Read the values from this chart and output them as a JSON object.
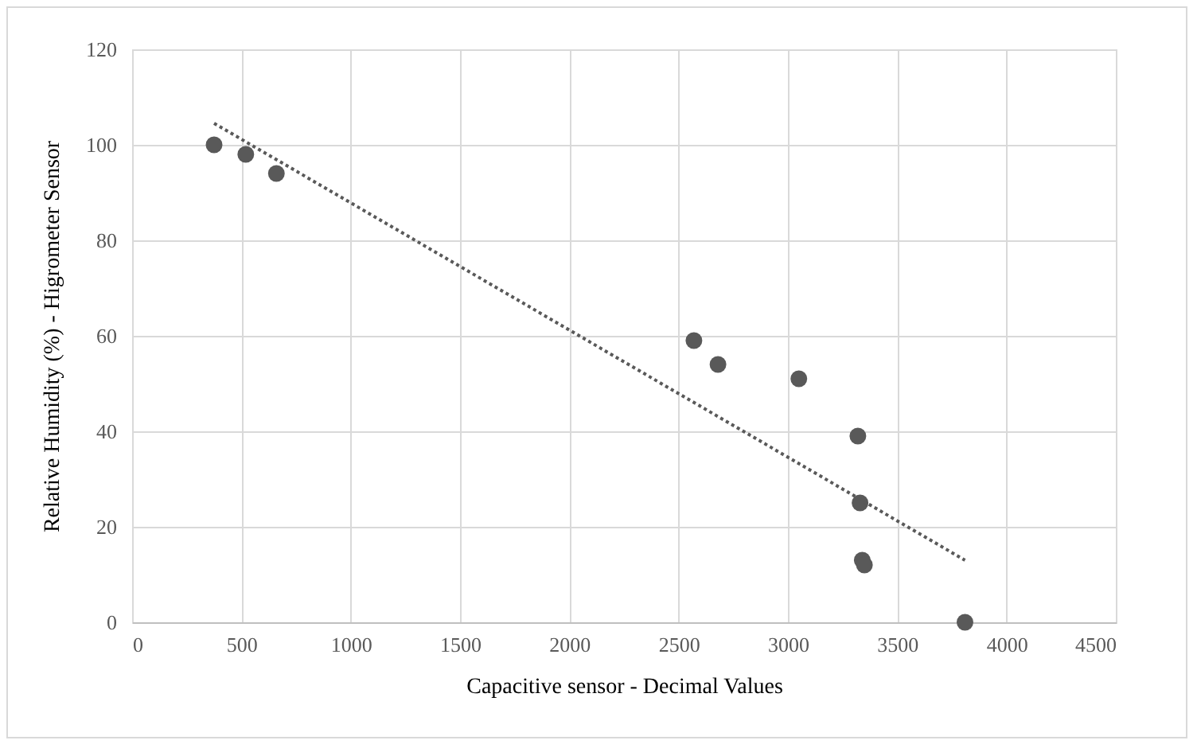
{
  "chart_data": {
    "type": "scatter",
    "xlabel": "Capacitive sensor - Decimal Values",
    "ylabel": "Relative Humidity (%) - Higrometer Sensor",
    "xlim": [
      0,
      4500
    ],
    "xticks": [
      0,
      500,
      1000,
      1500,
      2000,
      2500,
      3000,
      3500,
      4000,
      4500
    ],
    "ylim": [
      0,
      120
    ],
    "yticks": [
      0,
      20,
      40,
      60,
      80,
      100,
      120
    ],
    "grid": true,
    "series": [
      {
        "color": "#595959",
        "marker": "circle",
        "x": [
          375,
          520,
          660,
          2570,
          2680,
          3050,
          3320,
          3330,
          3340,
          3350,
          3810
        ],
        "values": [
          100,
          98,
          94,
          59,
          54,
          51,
          39,
          25,
          13,
          12,
          0
        ]
      },
      {
        "type": "line",
        "color": "#595959",
        "line_style": "dotted",
        "marker": "none",
        "x": [
          375,
          3810
        ],
        "values": [
          104.5,
          13
        ]
      }
    ]
  }
}
